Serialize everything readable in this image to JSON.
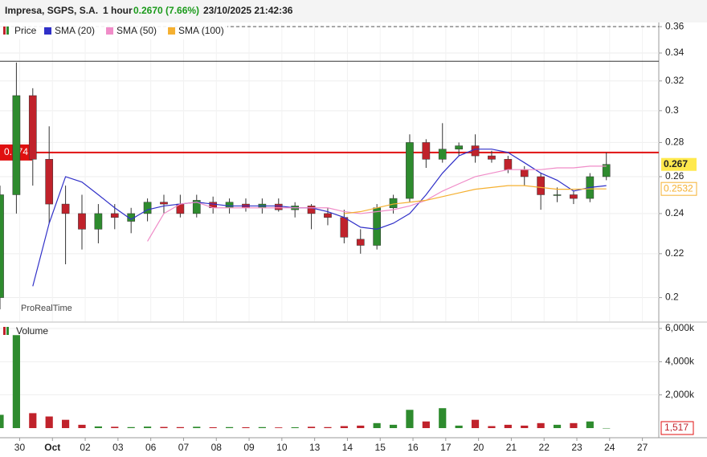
{
  "header": {
    "name": "Impresa, SGPS, S.A.",
    "interval": "1 hour",
    "price": "0.2670 (7.66%)",
    "datetime": "23/10/2025 21:42:36"
  },
  "chart_data": [
    {
      "type": "candlestick",
      "candle_name": "Price",
      "up_color": "#2e8b2e",
      "down_color": "#c0222b",
      "watermark": "ProRealTime",
      "log_scale": true,
      "grid": true,
      "x": [
        -0.6,
        -0.1,
        0.4,
        0.9,
        1.4,
        1.9,
        2.4,
        2.9,
        3.4,
        3.9,
        4.4,
        4.9,
        5.4,
        5.9,
        6.4,
        6.9,
        7.4,
        7.9,
        8.4,
        8.9,
        9.4,
        9.9,
        10.4,
        10.9,
        11.4,
        11.9,
        12.4,
        12.9,
        13.4,
        13.9,
        14.4,
        14.9,
        15.4,
        15.9,
        16.4,
        16.9,
        17.4,
        17.9
      ],
      "open": [
        0.2,
        0.25,
        0.31,
        0.27,
        0.245,
        0.24,
        0.232,
        0.24,
        0.236,
        0.24,
        0.246,
        0.245,
        0.24,
        0.246,
        0.243,
        0.245,
        0.243,
        0.245,
        0.242,
        0.244,
        0.24,
        0.238,
        0.227,
        0.224,
        0.243,
        0.248,
        0.28,
        0.27,
        0.276,
        0.278,
        0.272,
        0.27,
        0.264,
        0.26,
        0.25,
        0.25,
        0.248,
        0.26
      ],
      "high": [
        0.255,
        0.333,
        0.315,
        0.29,
        0.255,
        0.25,
        0.245,
        0.245,
        0.243,
        0.248,
        0.25,
        0.25,
        0.25,
        0.249,
        0.248,
        0.248,
        0.248,
        0.248,
        0.246,
        0.245,
        0.243,
        0.242,
        0.232,
        0.245,
        0.25,
        0.285,
        0.282,
        0.292,
        0.28,
        0.285,
        0.275,
        0.272,
        0.266,
        0.262,
        0.254,
        0.252,
        0.262,
        0.274
      ],
      "low": [
        0.195,
        0.24,
        0.255,
        0.235,
        0.215,
        0.222,
        0.225,
        0.232,
        0.23,
        0.236,
        0.24,
        0.238,
        0.238,
        0.24,
        0.24,
        0.241,
        0.24,
        0.241,
        0.238,
        0.232,
        0.234,
        0.225,
        0.22,
        0.222,
        0.24,
        0.246,
        0.265,
        0.268,
        0.272,
        0.268,
        0.268,
        0.262,
        0.255,
        0.242,
        0.246,
        0.245,
        0.246,
        0.258
      ],
      "close": [
        0.25,
        0.31,
        0.27,
        0.245,
        0.24,
        0.232,
        0.24,
        0.238,
        0.24,
        0.246,
        0.245,
        0.24,
        0.247,
        0.243,
        0.246,
        0.243,
        0.245,
        0.242,
        0.244,
        0.24,
        0.238,
        0.228,
        0.224,
        0.243,
        0.248,
        0.28,
        0.27,
        0.276,
        0.278,
        0.272,
        0.27,
        0.264,
        0.26,
        0.25,
        0.25,
        0.248,
        0.26,
        0.267
      ],
      "series": [
        {
          "name": "SMA (20)",
          "color": "#3030c8",
          "values": [
            null,
            null,
            0.205,
            0.235,
            0.26,
            0.257,
            0.25,
            0.243,
            0.237,
            0.242,
            0.244,
            0.245,
            0.246,
            0.245,
            0.244,
            0.244,
            0.244,
            0.244,
            0.243,
            0.243,
            0.241,
            0.238,
            0.233,
            0.232,
            0.235,
            0.24,
            0.25,
            0.262,
            0.272,
            0.276,
            0.276,
            0.274,
            0.268,
            0.262,
            0.258,
            0.252,
            0.254,
            0.255
          ]
        },
        {
          "name": "SMA (50)",
          "color": "#f08cc8",
          "values": [
            null,
            null,
            null,
            null,
            null,
            null,
            null,
            null,
            null,
            0.226,
            0.24,
            0.245,
            0.246,
            0.243,
            0.243,
            0.243,
            0.243,
            0.243,
            0.243,
            0.243,
            0.243,
            0.241,
            0.24,
            0.241,
            0.242,
            0.244,
            0.247,
            0.252,
            0.256,
            0.26,
            0.262,
            0.264,
            0.264,
            0.264,
            0.265,
            0.265,
            0.266,
            0.266
          ]
        },
        {
          "name": "SMA (100)",
          "color": "#f5b030",
          "values": [
            null,
            null,
            null,
            null,
            null,
            null,
            null,
            null,
            null,
            null,
            null,
            null,
            null,
            null,
            null,
            null,
            null,
            null,
            null,
            null,
            null,
            0.24,
            0.241,
            0.243,
            0.245,
            0.246,
            0.247,
            0.249,
            0.251,
            0.253,
            0.254,
            0.255,
            0.255,
            0.254,
            0.253,
            0.253,
            0.2532,
            0.2532
          ],
          "end_label": {
            "value": 0.2532,
            "label": "0.2532"
          }
        }
      ],
      "last_label": {
        "value": 0.267,
        "label": "0.267"
      },
      "hlines": [
        {
          "value": 0.274,
          "label": "0.274",
          "color": "#e01010"
        },
        {
          "value": 0.334,
          "color": "#333333"
        },
        {
          "value": 0.36,
          "color": "#555555",
          "dashed": true
        }
      ],
      "xlim": [
        -0.6,
        19.5
      ],
      "xticks": [
        {
          "value": 0,
          "label": "30"
        },
        {
          "value": 1,
          "label": "Oct"
        },
        {
          "value": 2,
          "label": "02"
        },
        {
          "value": 3,
          "label": "03"
        },
        {
          "value": 4,
          "label": "06"
        },
        {
          "value": 5,
          "label": "07"
        },
        {
          "value": 6,
          "label": "08"
        },
        {
          "value": 7,
          "label": "09"
        },
        {
          "value": 8,
          "label": "10"
        },
        {
          "value": 9,
          "label": "13"
        },
        {
          "value": 10,
          "label": "14"
        },
        {
          "value": 11,
          "label": "15"
        },
        {
          "value": 12,
          "label": "16"
        },
        {
          "value": 13,
          "label": "17"
        },
        {
          "value": 14,
          "label": "20"
        },
        {
          "value": 15,
          "label": "21"
        },
        {
          "value": 16,
          "label": "22"
        },
        {
          "value": 17,
          "label": "23"
        },
        {
          "value": 18,
          "label": "24"
        },
        {
          "value": 19,
          "label": "27"
        }
      ],
      "ylim": [
        0.19,
        0.362
      ],
      "yticks": [
        0.2,
        0.22,
        0.24,
        0.26,
        0.28,
        0.3,
        0.32,
        0.34,
        0.36
      ]
    },
    {
      "type": "bar",
      "name": "Volume",
      "x": [
        -0.6,
        -0.1,
        0.4,
        0.9,
        1.4,
        1.9,
        2.4,
        2.9,
        3.4,
        3.9,
        4.4,
        4.9,
        5.4,
        5.9,
        6.4,
        6.9,
        7.4,
        7.9,
        8.4,
        8.9,
        9.4,
        9.9,
        10.4,
        10.9,
        11.4,
        11.9,
        12.4,
        12.9,
        13.4,
        13.9,
        14.4,
        14.9,
        15.4,
        15.9,
        16.4,
        16.9,
        17.4,
        17.9
      ],
      "values": [
        800000,
        5600000,
        900000,
        700000,
        500000,
        200000,
        100000,
        80000,
        60000,
        90000,
        70000,
        60000,
        80000,
        50000,
        60000,
        50000,
        60000,
        40000,
        50000,
        80000,
        60000,
        120000,
        150000,
        300000,
        200000,
        1100000,
        400000,
        1200000,
        150000,
        500000,
        120000,
        200000,
        150000,
        300000,
        200000,
        300000,
        400000,
        1517
      ],
      "last_label": {
        "value": 1517,
        "label": "1,517"
      },
      "xlim": [
        -0.6,
        19.5
      ],
      "ylim": [
        -580000,
        6290000
      ],
      "yticks": [
        {
          "value": 2000000,
          "label": "2,000k"
        },
        {
          "value": 4000000,
          "label": "4,000k"
        },
        {
          "value": 6000000,
          "label": "6,000k"
        }
      ]
    }
  ]
}
